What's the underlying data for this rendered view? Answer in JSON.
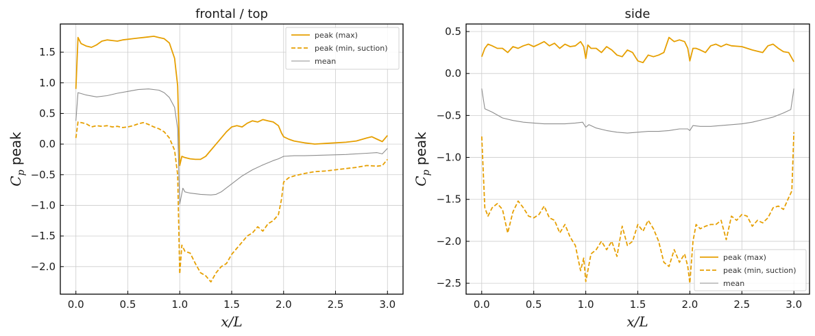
{
  "colors": {
    "max": "#e69f00",
    "min": "#e69f00",
    "mean": "#8c8c8c",
    "grid": "#cccccc",
    "axes": "#000000"
  },
  "chart_data": [
    {
      "type": "line",
      "title": "frontal / top",
      "xlabel": "x/L",
      "ylabel_main": "C",
      "ylabel_sub": "p",
      "ylabel_rest": " peak",
      "xlim": [
        -0.15,
        3.15
      ],
      "ylim": [
        -2.45,
        1.96
      ],
      "xticks": [
        0.0,
        0.5,
        1.0,
        1.5,
        2.0,
        2.5,
        3.0
      ],
      "yticks": [
        -2.0,
        -1.5,
        -1.0,
        -0.5,
        0.0,
        0.5,
        1.0,
        1.5
      ],
      "grid": true,
      "legend_position": "top-right",
      "series": [
        {
          "name": "peak (max)",
          "style": "solid",
          "color_key": "max",
          "x": [
            0.0,
            0.02,
            0.05,
            0.1,
            0.15,
            0.2,
            0.25,
            0.3,
            0.35,
            0.4,
            0.45,
            0.5,
            0.55,
            0.6,
            0.65,
            0.7,
            0.75,
            0.8,
            0.85,
            0.9,
            0.95,
            0.98,
            1.0,
            1.02,
            1.05,
            1.1,
            1.15,
            1.2,
            1.25,
            1.3,
            1.35,
            1.4,
            1.45,
            1.5,
            1.55,
            1.6,
            1.65,
            1.7,
            1.75,
            1.8,
            1.85,
            1.9,
            1.95,
            1.98,
            2.0,
            2.05,
            2.1,
            2.2,
            2.3,
            2.4,
            2.5,
            2.6,
            2.7,
            2.8,
            2.85,
            2.9,
            2.95,
            3.0
          ],
          "y": [
            0.9,
            1.74,
            1.64,
            1.6,
            1.58,
            1.62,
            1.68,
            1.7,
            1.69,
            1.68,
            1.7,
            1.71,
            1.72,
            1.73,
            1.74,
            1.75,
            1.76,
            1.74,
            1.72,
            1.65,
            1.4,
            0.95,
            -0.35,
            -0.2,
            -0.22,
            -0.24,
            -0.25,
            -0.25,
            -0.2,
            -0.1,
            0.0,
            0.1,
            0.2,
            0.28,
            0.3,
            0.28,
            0.34,
            0.38,
            0.36,
            0.4,
            0.38,
            0.36,
            0.3,
            0.18,
            0.12,
            0.08,
            0.05,
            0.02,
            0.0,
            0.01,
            0.02,
            0.03,
            0.05,
            0.1,
            0.12,
            0.08,
            0.04,
            0.14
          ]
        },
        {
          "name": "peak (min, suction)",
          "style": "dashed",
          "color_key": "min",
          "x": [
            0.0,
            0.02,
            0.05,
            0.1,
            0.15,
            0.2,
            0.25,
            0.3,
            0.35,
            0.4,
            0.45,
            0.5,
            0.55,
            0.6,
            0.65,
            0.7,
            0.75,
            0.8,
            0.85,
            0.9,
            0.95,
            0.98,
            1.0,
            1.02,
            1.05,
            1.1,
            1.15,
            1.2,
            1.25,
            1.3,
            1.35,
            1.4,
            1.45,
            1.5,
            1.55,
            1.6,
            1.65,
            1.7,
            1.75,
            1.8,
            1.85,
            1.9,
            1.95,
            1.98,
            2.0,
            2.05,
            2.1,
            2.2,
            2.3,
            2.4,
            2.5,
            2.6,
            2.7,
            2.8,
            2.9,
            2.95,
            3.0
          ],
          "y": [
            0.1,
            0.36,
            0.35,
            0.33,
            0.28,
            0.3,
            0.29,
            0.3,
            0.28,
            0.29,
            0.27,
            0.28,
            0.3,
            0.33,
            0.35,
            0.32,
            0.28,
            0.25,
            0.2,
            0.1,
            -0.1,
            -0.5,
            -2.12,
            -1.65,
            -1.75,
            -1.78,
            -1.95,
            -2.1,
            -2.15,
            -2.25,
            -2.1,
            -2.0,
            -1.95,
            -1.8,
            -1.7,
            -1.6,
            -1.5,
            -1.45,
            -1.35,
            -1.42,
            -1.3,
            -1.25,
            -1.15,
            -0.9,
            -0.62,
            -0.55,
            -0.52,
            -0.48,
            -0.45,
            -0.44,
            -0.42,
            -0.4,
            -0.38,
            -0.35,
            -0.36,
            -0.35,
            -0.25
          ]
        },
        {
          "name": "mean",
          "style": "thin",
          "color_key": "mean",
          "x": [
            0.0,
            0.02,
            0.1,
            0.2,
            0.3,
            0.4,
            0.5,
            0.6,
            0.7,
            0.8,
            0.85,
            0.9,
            0.95,
            0.98,
            1.0,
            1.03,
            1.05,
            1.1,
            1.2,
            1.3,
            1.35,
            1.4,
            1.5,
            1.6,
            1.7,
            1.8,
            1.9,
            1.95,
            2.0,
            2.1,
            2.2,
            2.4,
            2.6,
            2.8,
            2.9,
            2.95,
            3.0
          ],
          "y": [
            0.38,
            0.84,
            0.8,
            0.77,
            0.79,
            0.83,
            0.86,
            0.89,
            0.9,
            0.88,
            0.84,
            0.76,
            0.6,
            0.25,
            -0.98,
            -0.72,
            -0.78,
            -0.8,
            -0.82,
            -0.83,
            -0.82,
            -0.78,
            -0.65,
            -0.52,
            -0.42,
            -0.34,
            -0.27,
            -0.24,
            -0.2,
            -0.19,
            -0.19,
            -0.18,
            -0.17,
            -0.15,
            -0.14,
            -0.16,
            -0.07
          ]
        }
      ]
    },
    {
      "type": "line",
      "title": "side",
      "xlabel": "x/L",
      "ylabel_main": "C",
      "ylabel_sub": "p",
      "ylabel_rest": " peak",
      "xlim": [
        -0.15,
        3.15
      ],
      "ylim": [
        -2.63,
        0.59
      ],
      "xticks": [
        0.0,
        0.5,
        1.0,
        1.5,
        2.0,
        2.5,
        3.0
      ],
      "yticks": [
        -2.5,
        -2.0,
        -1.5,
        -1.0,
        -0.5,
        0.0,
        0.5
      ],
      "grid": true,
      "legend_position": "bottom-right",
      "series": [
        {
          "name": "peak (max)",
          "style": "solid",
          "color_key": "max",
          "x": [
            0.0,
            0.03,
            0.06,
            0.1,
            0.15,
            0.2,
            0.25,
            0.3,
            0.35,
            0.4,
            0.45,
            0.5,
            0.55,
            0.6,
            0.65,
            0.7,
            0.75,
            0.8,
            0.85,
            0.9,
            0.95,
            0.98,
            1.0,
            1.02,
            1.05,
            1.1,
            1.15,
            1.2,
            1.25,
            1.3,
            1.35,
            1.4,
            1.45,
            1.5,
            1.55,
            1.6,
            1.65,
            1.7,
            1.75,
            1.8,
            1.85,
            1.9,
            1.95,
            1.98,
            2.0,
            2.03,
            2.06,
            2.1,
            2.15,
            2.2,
            2.25,
            2.3,
            2.35,
            2.4,
            2.5,
            2.6,
            2.7,
            2.75,
            2.8,
            2.85,
            2.9,
            2.95,
            3.0
          ],
          "y": [
            0.2,
            0.3,
            0.35,
            0.33,
            0.3,
            0.3,
            0.25,
            0.32,
            0.3,
            0.33,
            0.35,
            0.32,
            0.35,
            0.38,
            0.33,
            0.36,
            0.3,
            0.35,
            0.32,
            0.33,
            0.38,
            0.32,
            0.18,
            0.34,
            0.3,
            0.3,
            0.25,
            0.32,
            0.28,
            0.22,
            0.2,
            0.28,
            0.25,
            0.15,
            0.13,
            0.22,
            0.2,
            0.22,
            0.25,
            0.43,
            0.38,
            0.4,
            0.38,
            0.3,
            0.15,
            0.3,
            0.3,
            0.28,
            0.25,
            0.33,
            0.35,
            0.32,
            0.35,
            0.33,
            0.32,
            0.28,
            0.25,
            0.33,
            0.35,
            0.3,
            0.26,
            0.25,
            0.14
          ]
        },
        {
          "name": "peak (min, suction)",
          "style": "dashed",
          "color_key": "min",
          "x": [
            0.0,
            0.03,
            0.06,
            0.1,
            0.15,
            0.2,
            0.25,
            0.3,
            0.35,
            0.4,
            0.45,
            0.5,
            0.55,
            0.6,
            0.65,
            0.7,
            0.75,
            0.8,
            0.85,
            0.9,
            0.95,
            0.98,
            1.0,
            1.02,
            1.05,
            1.1,
            1.15,
            1.2,
            1.25,
            1.3,
            1.35,
            1.4,
            1.45,
            1.5,
            1.55,
            1.6,
            1.65,
            1.7,
            1.75,
            1.8,
            1.85,
            1.9,
            1.95,
            1.98,
            2.0,
            2.03,
            2.06,
            2.1,
            2.15,
            2.2,
            2.25,
            2.3,
            2.35,
            2.4,
            2.45,
            2.5,
            2.55,
            2.6,
            2.65,
            2.7,
            2.75,
            2.8,
            2.85,
            2.9,
            2.95,
            2.98,
            3.0
          ],
          "y": [
            -0.75,
            -1.6,
            -1.7,
            -1.6,
            -1.55,
            -1.62,
            -1.9,
            -1.65,
            -1.52,
            -1.6,
            -1.7,
            -1.72,
            -1.68,
            -1.58,
            -1.72,
            -1.75,
            -1.9,
            -1.8,
            -1.95,
            -2.05,
            -2.35,
            -2.2,
            -2.48,
            -2.35,
            -2.15,
            -2.1,
            -2.0,
            -2.1,
            -2.0,
            -2.18,
            -1.82,
            -2.05,
            -2.0,
            -1.8,
            -1.88,
            -1.75,
            -1.85,
            -2.0,
            -2.25,
            -2.3,
            -2.1,
            -2.25,
            -2.15,
            -2.3,
            -2.5,
            -2.0,
            -1.8,
            -1.85,
            -1.82,
            -1.8,
            -1.8,
            -1.75,
            -1.98,
            -1.7,
            -1.75,
            -1.68,
            -1.7,
            -1.82,
            -1.75,
            -1.78,
            -1.72,
            -1.6,
            -1.58,
            -1.62,
            -1.48,
            -1.4,
            -0.7
          ]
        },
        {
          "name": "mean",
          "style": "thin",
          "color_key": "mean",
          "x": [
            0.0,
            0.03,
            0.1,
            0.2,
            0.3,
            0.4,
            0.5,
            0.6,
            0.7,
            0.8,
            0.9,
            0.97,
            1.0,
            1.03,
            1.1,
            1.2,
            1.3,
            1.4,
            1.5,
            1.6,
            1.7,
            1.8,
            1.9,
            1.98,
            2.0,
            2.03,
            2.1,
            2.2,
            2.3,
            2.4,
            2.5,
            2.6,
            2.7,
            2.8,
            2.9,
            2.97,
            3.0
          ],
          "y": [
            -0.18,
            -0.42,
            -0.46,
            -0.53,
            -0.56,
            -0.58,
            -0.59,
            -0.6,
            -0.6,
            -0.6,
            -0.59,
            -0.58,
            -0.64,
            -0.61,
            -0.65,
            -0.68,
            -0.7,
            -0.71,
            -0.7,
            -0.69,
            -0.69,
            -0.68,
            -0.66,
            -0.66,
            -0.68,
            -0.62,
            -0.63,
            -0.63,
            -0.62,
            -0.61,
            -0.6,
            -0.58,
            -0.55,
            -0.52,
            -0.47,
            -0.43,
            -0.18
          ]
        }
      ]
    }
  ]
}
